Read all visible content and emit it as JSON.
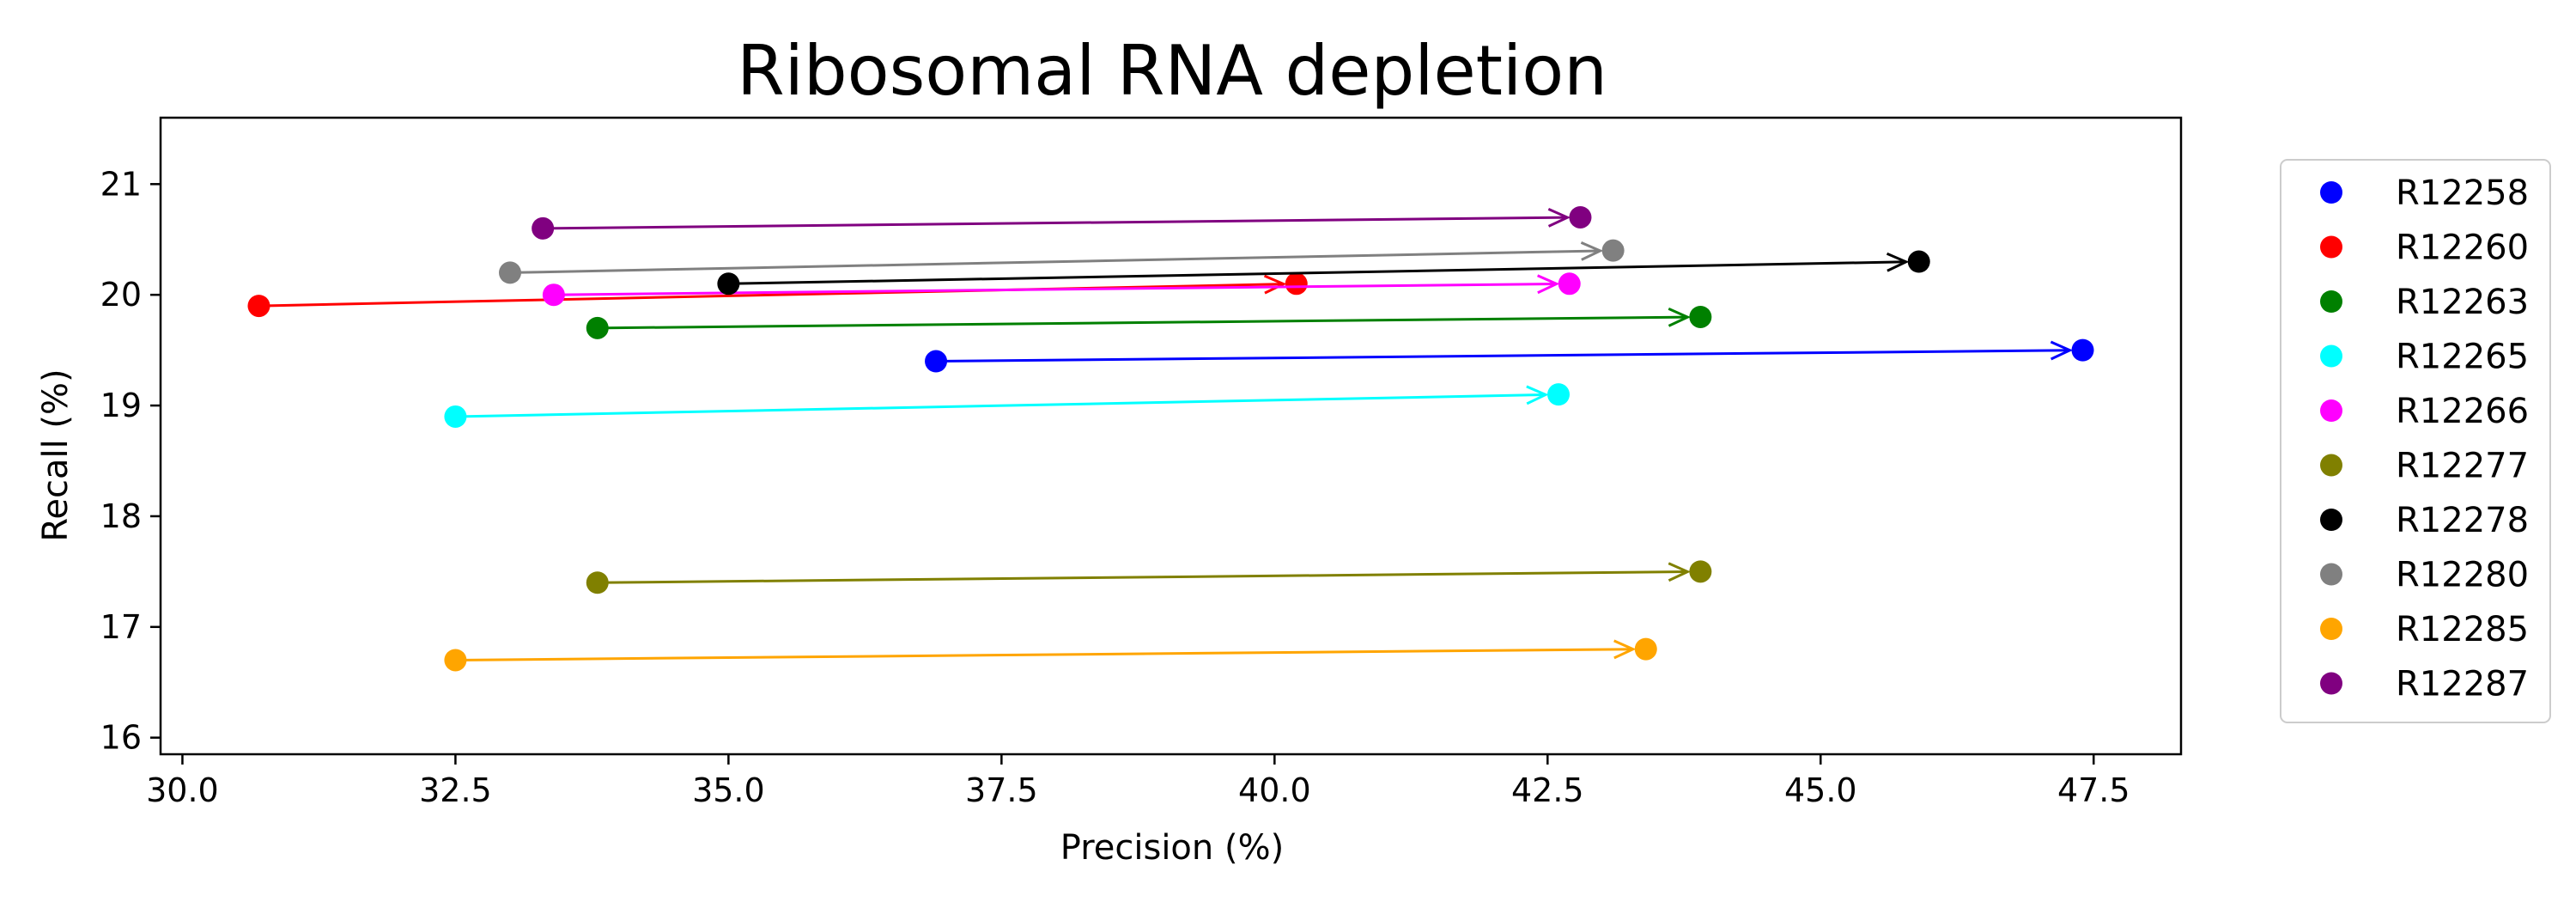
{
  "chart_data": {
    "type": "scatter",
    "title": "Ribosomal RNA depletion",
    "xlabel": "Precision (%)",
    "ylabel": "Recall (%)",
    "xlim": [
      29.8,
      48.3
    ],
    "ylim": [
      15.85,
      21.6
    ],
    "xticks": [
      30.0,
      32.5,
      35.0,
      37.5,
      40.0,
      42.5,
      45.0,
      47.5
    ],
    "xtick_labels": [
      "30.0",
      "32.5",
      "35.0",
      "37.5",
      "40.0",
      "42.5",
      "45.0",
      "47.5"
    ],
    "yticks": [
      16,
      17,
      18,
      19,
      20,
      21
    ],
    "ytick_labels": [
      "16",
      "17",
      "18",
      "19",
      "20",
      "21"
    ],
    "grid": false,
    "legend_position": "outside-right",
    "note": "Each series: marker at start and end, arrow from start to end",
    "series": [
      {
        "name": "R12258",
        "color": "#0000ff",
        "start": [
          36.9,
          19.4
        ],
        "end": [
          47.4,
          19.5
        ]
      },
      {
        "name": "R12260",
        "color": "#ff0000",
        "start": [
          30.7,
          19.9
        ],
        "end": [
          40.2,
          20.1
        ]
      },
      {
        "name": "R12263",
        "color": "#008000",
        "start": [
          33.8,
          19.7
        ],
        "end": [
          43.9,
          19.8
        ]
      },
      {
        "name": "R12265",
        "color": "#00ffff",
        "start": [
          32.5,
          18.9
        ],
        "end": [
          42.6,
          19.1
        ]
      },
      {
        "name": "R12266",
        "color": "#ff00ff",
        "start": [
          33.4,
          20.0
        ],
        "end": [
          42.7,
          20.1
        ]
      },
      {
        "name": "R12277",
        "color": "#808000",
        "start": [
          33.8,
          17.4
        ],
        "end": [
          43.9,
          17.5
        ]
      },
      {
        "name": "R12278",
        "color": "#000000",
        "start": [
          35.0,
          20.1
        ],
        "end": [
          45.9,
          20.3
        ]
      },
      {
        "name": "R12280",
        "color": "#808080",
        "start": [
          33.0,
          20.2
        ],
        "end": [
          43.1,
          20.4
        ]
      },
      {
        "name": "R12285",
        "color": "#ffa500",
        "start": [
          32.5,
          16.7
        ],
        "end": [
          43.4,
          16.8
        ]
      },
      {
        "name": "R12287",
        "color": "#800080",
        "start": [
          33.3,
          20.6
        ],
        "end": [
          42.8,
          20.7
        ]
      }
    ]
  }
}
